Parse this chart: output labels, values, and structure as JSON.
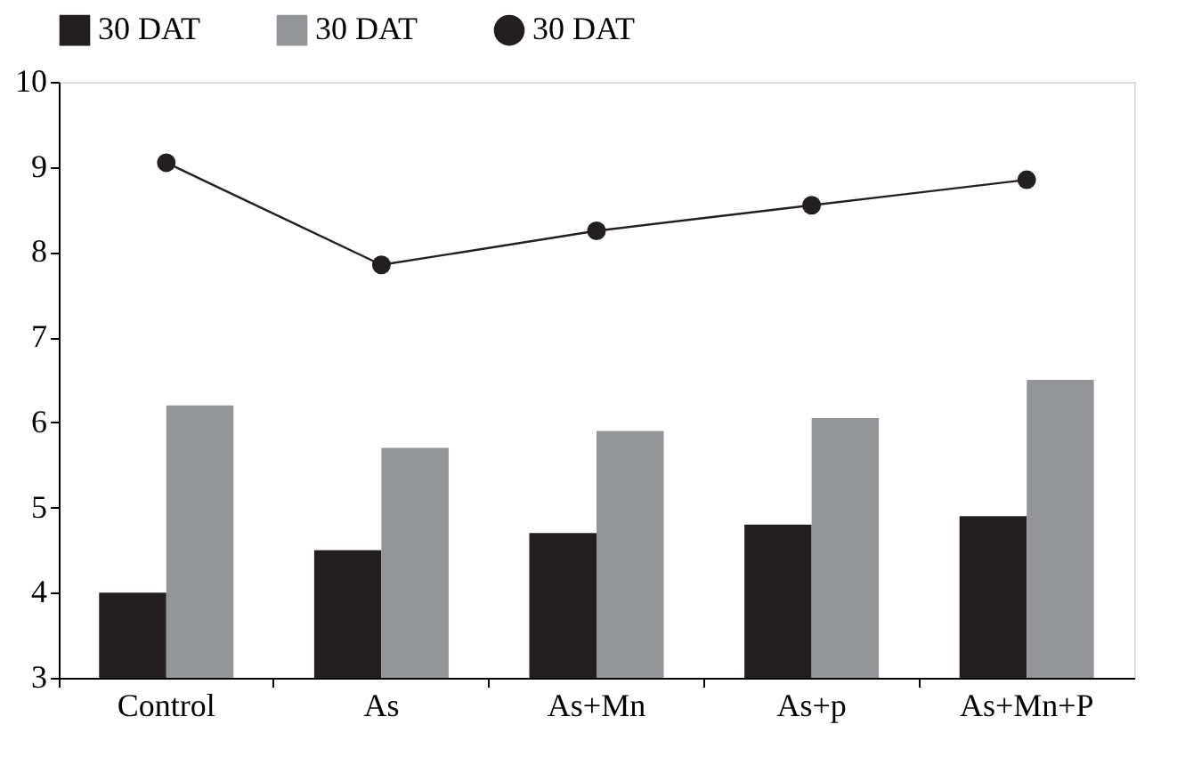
{
  "chart_data": {
    "type": "bar",
    "categories": [
      "Control",
      "As",
      "As+Mn",
      "As+p",
      "As+Mn+P"
    ],
    "series": [
      {
        "name": "30 DAT",
        "color": "#231f20",
        "values": [
          4.0,
          4.5,
          4.7,
          4.8,
          4.9
        ]
      },
      {
        "name": "30 DAT",
        "color": "#939598",
        "values": [
          6.2,
          5.7,
          5.9,
          6.05,
          6.5
        ]
      },
      {
        "name": "30 DAT",
        "color": "#231f20",
        "type": "line",
        "marker": "circle",
        "line_style": "solid",
        "values": [
          9.05,
          7.85,
          8.25,
          8.55,
          8.85
        ]
      }
    ],
    "ylim": [
      3,
      10
    ],
    "yticks": [
      3,
      4,
      5,
      6,
      7,
      8,
      9,
      10
    ],
    "grid": false,
    "legend": "top"
  }
}
